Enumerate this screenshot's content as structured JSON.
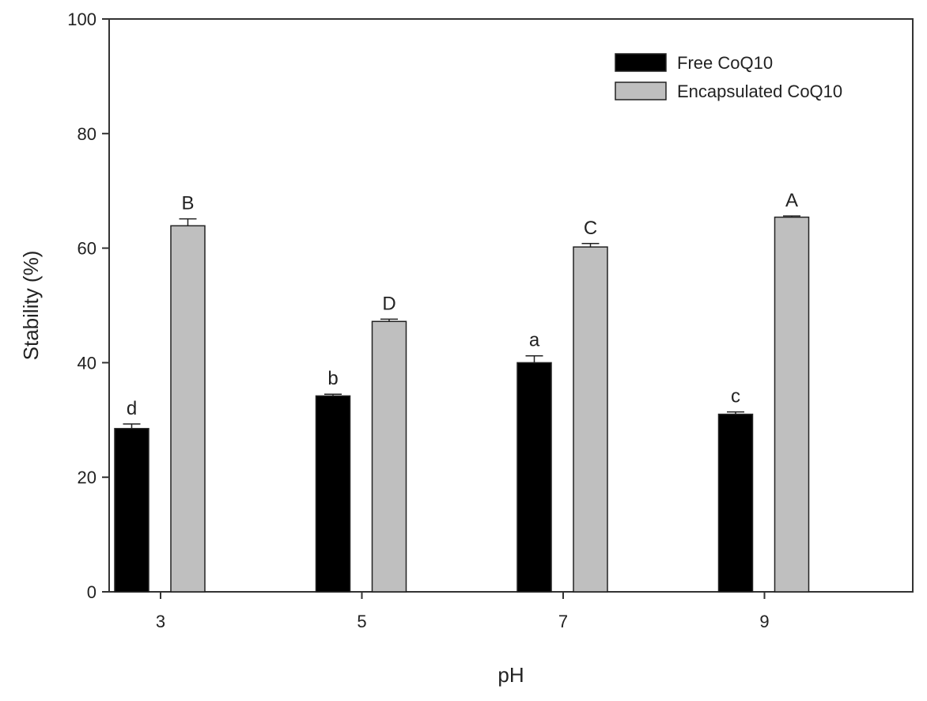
{
  "chart_data": {
    "type": "bar",
    "title": "",
    "xlabel": "pH",
    "ylabel": "Stability (%)",
    "ylim": [
      0,
      100
    ],
    "yticks": [
      0,
      20,
      40,
      60,
      80,
      100
    ],
    "categories": [
      "3",
      "5",
      "7",
      "9"
    ],
    "legend_position": "top-right",
    "grid": false,
    "series": [
      {
        "name": "Free CoQ10",
        "color": "#000000",
        "values": [
          28.5,
          34.2,
          40.0,
          31.0
        ],
        "errors": [
          0.8,
          0.3,
          1.2,
          0.4
        ],
        "letters": [
          "d",
          "b",
          "a",
          "c"
        ]
      },
      {
        "name": "Encapsulated CoQ10",
        "color": "#bfbfbf",
        "values": [
          63.9,
          47.2,
          60.2,
          65.4
        ],
        "errors": [
          1.2,
          0.4,
          0.6,
          0.2
        ],
        "letters": [
          "B",
          "D",
          "C",
          "A"
        ]
      }
    ]
  }
}
